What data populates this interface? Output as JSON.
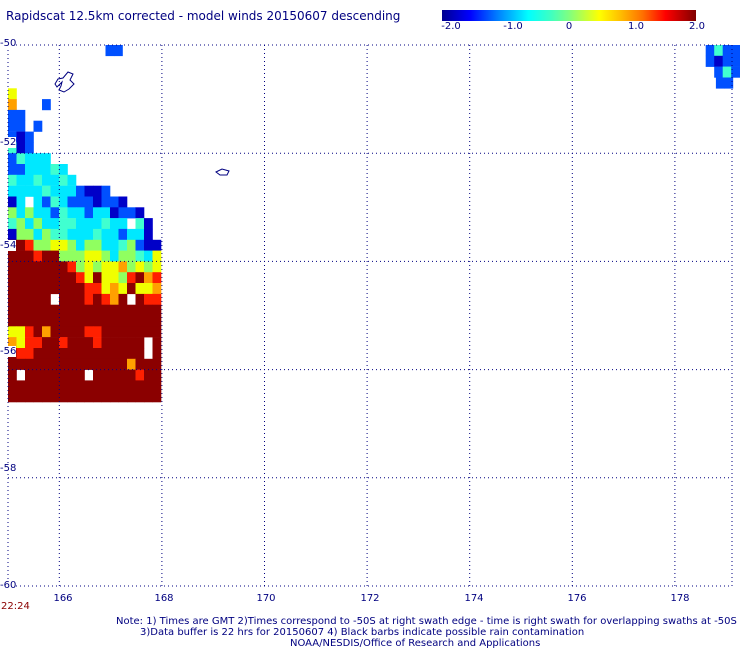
{
  "title": "Rapidscat 12.5km corrected - model winds 20150607 descending",
  "colorbar": {
    "labels": [
      "-2.0",
      "-1.0",
      "0",
      "1.0",
      "2.0"
    ],
    "range": [
      -2.0,
      2.0
    ]
  },
  "axes": {
    "lat_labels": [
      "-50",
      "-52",
      "-54",
      "-56",
      "-58",
      "-60"
    ],
    "lon_labels": [
      "166",
      "168",
      "170",
      "172",
      "174",
      "176",
      "178"
    ]
  },
  "timestamp": "22:24",
  "notes": [
    "Note: 1) Times are GMT 2)Times correspond to -50S at right swath edge - time is right swath for overlapping swaths at -50S",
    "3)Data buffer is 22 hrs for 20150607 4) Black barbs indicate possible rain contamination",
    "NOAA/NESDIS/Office of Research and Applications"
  ],
  "colors": {
    "text": "#000080",
    "grid": "#000080",
    "timestamp": "#8b0000"
  },
  "swath_rows": [
    {
      "lat": -50.0,
      "lon0": 166.9,
      "v": "LL"
    },
    {
      "lat": -50.0,
      "lon0": 178.6,
      "v": "LMLL"
    },
    {
      "lat": -50.2,
      "lon0": 178.6,
      "v": "LBLL"
    },
    {
      "lat": -50.4,
      "lon0": 178.6,
      "v": "_LML"
    },
    {
      "lat": -50.6,
      "lon0": 178.8,
      "v": "LL"
    },
    {
      "lat": -50.8,
      "lon0": 165.0,
      "v": "Y"
    },
    {
      "lat": -51.0,
      "lon0": 165.0,
      "v": "O___L"
    },
    {
      "lat": -51.2,
      "lon0": 165.0,
      "v": "LL"
    },
    {
      "lat": -51.4,
      "lon0": 165.0,
      "v": "LL_L"
    },
    {
      "lat": -51.6,
      "lon0": 165.0,
      "v": "LBL"
    },
    {
      "lat": -51.8,
      "lon0": 165.0,
      "v": "MBL"
    },
    {
      "lat": -52.0,
      "lon0": 165.0,
      "v": "LMCCC"
    },
    {
      "lat": -52.2,
      "lon0": 165.0,
      "v": "LLCCCMC"
    },
    {
      "lat": -52.4,
      "lon0": 165.0,
      "v": "MCCMCCMC"
    },
    {
      "lat": -52.6,
      "lon0": 165.0,
      "v": "CCCCMCCCLBBL"
    },
    {
      "lat": -52.8,
      "lon0": 165.0,
      "v": "BC_CLMCLLLBLLB"
    },
    {
      "lat": -53.0,
      "lon0": 165.0,
      "v": "GCGCCLMCCLCCBLLB"
    },
    {
      "lat": -53.2,
      "lon0": 165.0,
      "v": "MGCGCCMMCCCMCC_MB"
    },
    {
      "lat": -53.4,
      "lon0": 165.0,
      "v": "BGGCGMMCCCMCCLCCB"
    },
    {
      "lat": -53.6,
      "lon0": 165.0,
      "v": "DDRGGYYGCGGCCMGLBB"
    },
    {
      "lat": -53.8,
      "lon0": 165.0,
      "v": "DDDRDDGGGYYGCGGMCY"
    },
    {
      "lat": -54.0,
      "lon0": 165.0,
      "v": "DDDDDDDRGYGYYOGYGY"
    },
    {
      "lat": -54.2,
      "lon0": 165.0,
      "v": "DDDDDDDDRYDYYGRDOR"
    },
    {
      "lat": -54.4,
      "lon0": 165.0,
      "v": "DDDDDDDDDRRYOYDYYO"
    },
    {
      "lat": -54.6,
      "lon0": 165.0,
      "v": "DDDDD_DDDRDROD_DRR"
    },
    {
      "lat": -54.8,
      "lon0": 165.0,
      "v": "DDDDDDDDDDDDDDDDDD"
    },
    {
      "lat": -55.0,
      "lon0": 165.0,
      "v": "DDDDDDDDDDDDDDDDDD"
    },
    {
      "lat": -55.2,
      "lon0": 165.0,
      "v": "YYRDODDDDRRDDDDDDD"
    },
    {
      "lat": -55.4,
      "lon0": 165.0,
      "v": "OYRRDDRDDDRDDDDD_D"
    },
    {
      "lat": -55.6,
      "lon0": 165.0,
      "v": "DRRDDDDDDDDDDDDD_D"
    },
    {
      "lat": -55.8,
      "lon0": 165.0,
      "v": "DDDDDDDDDDDDDDODDD"
    },
    {
      "lat": -56.0,
      "lon0": 165.0,
      "v": "D_DDDDDDD_DDDDDRDD"
    },
    {
      "lat": -56.2,
      "lon0": 165.0,
      "v": "DDDDDDDDDDDDDDDDDD"
    },
    {
      "lat": -56.4,
      "lon0": 165.0,
      "v": "DDDDDDDDDDDDDDDDDD"
    }
  ]
}
